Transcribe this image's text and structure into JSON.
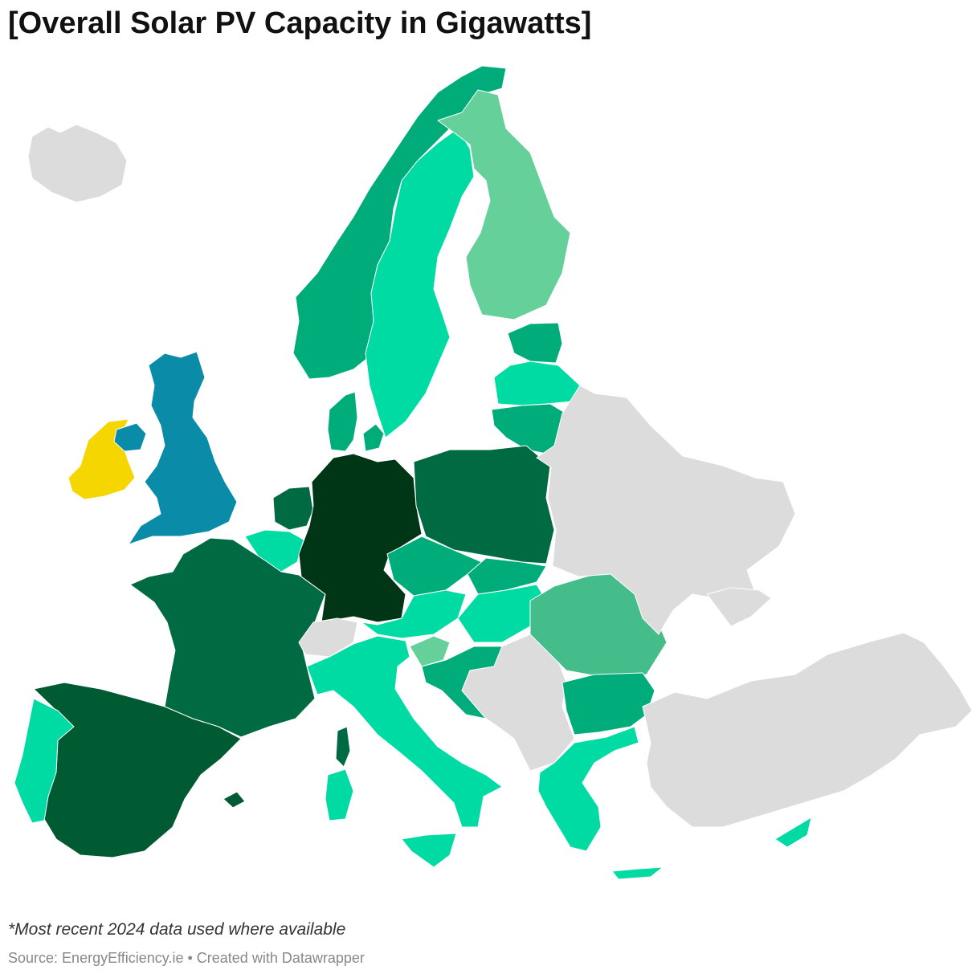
{
  "header": {
    "title": "[Overall Solar PV Capacity in Gigawatts]"
  },
  "footer": {
    "note": "*Most recent 2024 data used where available",
    "source_prefix": "Source: ",
    "source_name": "EnergyEfficiency.ie",
    "separator": " • ",
    "credit": "Created with Datawrapper"
  },
  "colors": {
    "no_data": "#dcdcdc",
    "highlight": "#f5d600",
    "uk": "#0a8ca8",
    "scale_light": "#66d09a",
    "scale_mint": "#00dba3",
    "scale_mid": "#45bd8a",
    "scale_teal": "#00ad7a",
    "scale_dark": "#006b42",
    "scale_darker": "#005a32",
    "scale_darkest": "#003516"
  }
}
